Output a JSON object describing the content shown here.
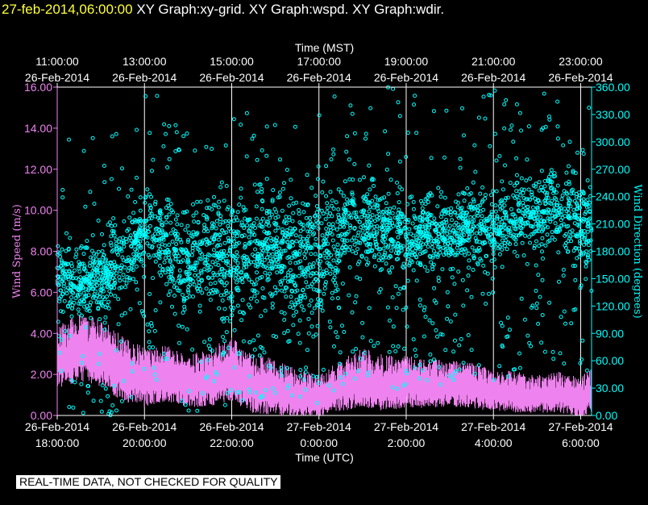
{
  "header": {
    "timestamp": "27-feb-2014,06:00:00",
    "graphs": [
      "XY Graph:xy-grid.",
      "XY Graph:wspd.",
      "XY Graph:wdir."
    ]
  },
  "banner": "REAL-TIME DATA, NOT CHECKED FOR QUALITY",
  "colors": {
    "wspd": "#ee82ee",
    "wdir": "#00ffff",
    "grid": "#ffffff",
    "background": "#000000"
  },
  "chart_data": {
    "type": "scatter",
    "top_axis": {
      "title": "Time (MST)",
      "ticks": [
        {
          "time": "11:00:00",
          "date": "26-Feb-2014"
        },
        {
          "time": "13:00:00",
          "date": "26-Feb-2014"
        },
        {
          "time": "15:00:00",
          "date": "26-Feb-2014"
        },
        {
          "time": "17:00:00",
          "date": "26-Feb-2014"
        },
        {
          "time": "19:00:00",
          "date": "26-Feb-2014"
        },
        {
          "time": "21:00:00",
          "date": "26-Feb-2014"
        },
        {
          "time": "23:00:00",
          "date": "26-Feb-2014"
        }
      ]
    },
    "bottom_axis": {
      "title": "Time (UTC)",
      "range_hours": [
        18,
        30.25
      ],
      "ticks": [
        {
          "hour": 18,
          "date": "26-Feb-2014",
          "time": "18:00:00"
        },
        {
          "hour": 20,
          "date": "26-Feb-2014",
          "time": "20:00:00"
        },
        {
          "hour": 22,
          "date": "26-Feb-2014",
          "time": "22:00:00"
        },
        {
          "hour": 24,
          "date": "27-Feb-2014",
          "time": "0:00:00"
        },
        {
          "hour": 26,
          "date": "27-Feb-2014",
          "time": "2:00:00"
        },
        {
          "hour": 28,
          "date": "27-Feb-2014",
          "time": "4:00:00"
        },
        {
          "hour": 30,
          "date": "27-Feb-2014",
          "time": "6:00:00"
        }
      ]
    },
    "left_axis": {
      "title": "Wind Speed (m/s)",
      "range": [
        0,
        16
      ],
      "ticks": [
        "0.00",
        "2.00",
        "4.00",
        "6.00",
        "8.00",
        "10.00",
        "12.00",
        "14.00",
        "16.00"
      ]
    },
    "right_axis": {
      "title": "Wind Direction (degrees)",
      "range": [
        0,
        360
      ],
      "ticks": [
        "0.00",
        "30.00",
        "60.00",
        "90.00",
        "120.00",
        "150.00",
        "180.00",
        "210.00",
        "240.00",
        "270.00",
        "300.00",
        "330.00",
        "360.00"
      ]
    },
    "grid": "vertical",
    "series": [
      {
        "key": "wspd",
        "axis": "left",
        "style": "line",
        "description_points": [
          [
            18.0,
            2.8
          ],
          [
            18.5,
            3.2
          ],
          [
            19.0,
            3.0
          ],
          [
            19.5,
            2.2
          ],
          [
            20.0,
            1.8
          ],
          [
            20.5,
            2.0
          ],
          [
            21.0,
            1.6
          ],
          [
            21.5,
            1.8
          ],
          [
            22.0,
            2.2
          ],
          [
            22.5,
            1.5
          ],
          [
            23.0,
            1.3
          ],
          [
            23.5,
            1.0
          ],
          [
            24.0,
            0.9
          ],
          [
            24.5,
            1.4
          ],
          [
            25.0,
            1.8
          ],
          [
            25.5,
            1.5
          ],
          [
            26.0,
            1.6
          ],
          [
            26.5,
            1.5
          ],
          [
            27.0,
            1.5
          ],
          [
            27.5,
            1.4
          ],
          [
            28.0,
            1.2
          ],
          [
            28.5,
            1.1
          ],
          [
            29.0,
            1.0
          ],
          [
            29.5,
            1.1
          ],
          [
            30.0,
            0.8
          ],
          [
            30.25,
            1.2
          ]
        ],
        "spread": [
          [
            18.0,
            1.5
          ],
          [
            19.0,
            1.6
          ],
          [
            20.0,
            1.4
          ],
          [
            21.0,
            1.2
          ],
          [
            22.0,
            1.5
          ],
          [
            23.0,
            1.3
          ],
          [
            24.0,
            1.0
          ],
          [
            25.0,
            1.4
          ],
          [
            26.0,
            1.2
          ],
          [
            27.0,
            1.1
          ],
          [
            28.0,
            1.0
          ],
          [
            29.0,
            0.9
          ],
          [
            30.25,
            1.0
          ]
        ]
      },
      {
        "key": "wdir",
        "axis": "right",
        "style": "points",
        "description_points": [
          [
            18.0,
            150
          ],
          [
            18.5,
            145
          ],
          [
            19.0,
            150
          ],
          [
            19.5,
            170
          ],
          [
            20.0,
            205
          ],
          [
            20.5,
            190
          ],
          [
            21.0,
            160
          ],
          [
            21.5,
            190
          ],
          [
            22.0,
            170
          ],
          [
            22.5,
            180
          ],
          [
            23.0,
            185
          ],
          [
            23.5,
            170
          ],
          [
            24.0,
            175
          ],
          [
            24.5,
            200
          ],
          [
            25.0,
            210
          ],
          [
            25.5,
            205
          ],
          [
            26.0,
            190
          ],
          [
            26.5,
            200
          ],
          [
            27.0,
            200
          ],
          [
            27.5,
            210
          ],
          [
            28.0,
            205
          ],
          [
            28.5,
            215
          ],
          [
            29.0,
            220
          ],
          [
            29.5,
            225
          ],
          [
            30.0,
            215
          ],
          [
            30.25,
            205
          ]
        ],
        "spread": [
          [
            18.0,
            25
          ],
          [
            19.0,
            30
          ],
          [
            20.0,
            30
          ],
          [
            21.0,
            40
          ],
          [
            22.0,
            45
          ],
          [
            23.0,
            40
          ],
          [
            24.0,
            55
          ],
          [
            25.0,
            35
          ],
          [
            26.0,
            30
          ],
          [
            27.0,
            30
          ],
          [
            28.0,
            30
          ],
          [
            29.0,
            30
          ],
          [
            30.25,
            35
          ]
        ]
      }
    ]
  }
}
